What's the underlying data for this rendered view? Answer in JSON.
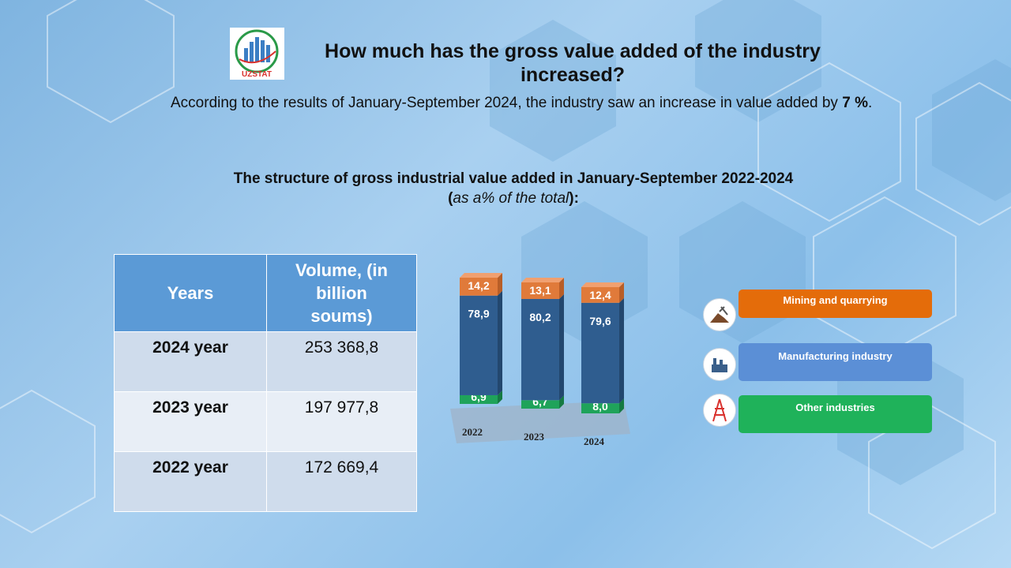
{
  "logo": {
    "text": "UZSTAT"
  },
  "title": "How much has the gross value added of the industry increased?",
  "paragraph": {
    "prefix": "According to the results of January-September 2024, the industry saw an increase in value added by",
    "value": "7 %",
    "suffix": "."
  },
  "subtitle": {
    "line1": "The structure of gross industrial  value added in January-September 2022-2024",
    "open": "(",
    "italic": "as a% of the total",
    "close": "):"
  },
  "table": {
    "headers": [
      "Years",
      "Volume, (in billion soums)"
    ],
    "rows": [
      {
        "year": "2024 year",
        "volume": "253 368,8"
      },
      {
        "year": "2023 year",
        "volume": "197 977,8"
      },
      {
        "year": "2022 year",
        "volume": "172 669,4"
      }
    ]
  },
  "chart_data": {
    "type": "bar",
    "stacked": true,
    "title": "The structure of gross industrial value added in January-September 2022-2024 (as a% of the total)",
    "categories": [
      "2022",
      "2023",
      "2024"
    ],
    "series": [
      {
        "name": "Other industries",
        "values": [
          6.9,
          6.7,
          8.0
        ],
        "labels": [
          "6,9",
          "6,7",
          "8,0"
        ],
        "color": "#1fa35a"
      },
      {
        "name": "Manufacturing industry",
        "values": [
          78.9,
          80.2,
          79.6
        ],
        "labels": [
          "78,9",
          "80,2",
          "79,6"
        ],
        "color": "#2f5d8f"
      },
      {
        "name": "Mining and quarrying",
        "values": [
          14.2,
          13.1,
          12.4
        ],
        "labels": [
          "14,2",
          "13,1",
          "12,4"
        ],
        "color": "#e07a3a"
      }
    ],
    "ylim": [
      0,
      100
    ]
  },
  "legend": [
    {
      "label": "Mining and quarrying",
      "icon": "mining-icon",
      "color": "#e46c0a"
    },
    {
      "label": "Manufacturing industry",
      "icon": "factory-icon",
      "color": "#5b8fd6"
    },
    {
      "label": "Other industries",
      "icon": "power-tower-icon",
      "color": "#1fb25a"
    }
  ]
}
